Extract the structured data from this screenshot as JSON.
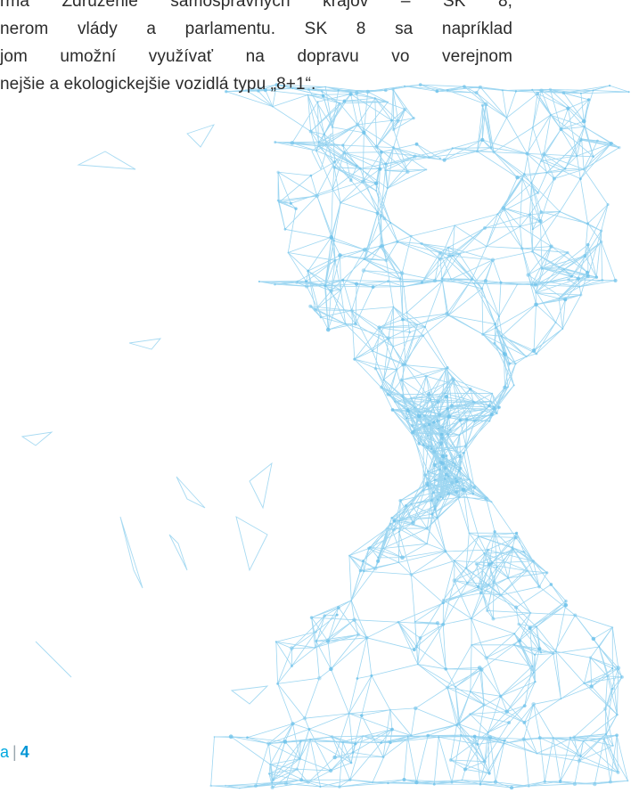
{
  "body_text": {
    "lines": [
      "rma Združenie samosprávnych krajov – SK 8,",
      "nerom vlády a parlamentu. SK 8 sa napríklad",
      "jom umožní využívať na dopravu vo verejnom",
      "nejšie a ekologickejšie vozidlá typu „8+1“."
    ]
  },
  "footer": {
    "left_fragment": "a",
    "page_number": "4"
  },
  "illustration": {
    "icon": "hourglass-network-icon",
    "color": "#8ccfef"
  }
}
